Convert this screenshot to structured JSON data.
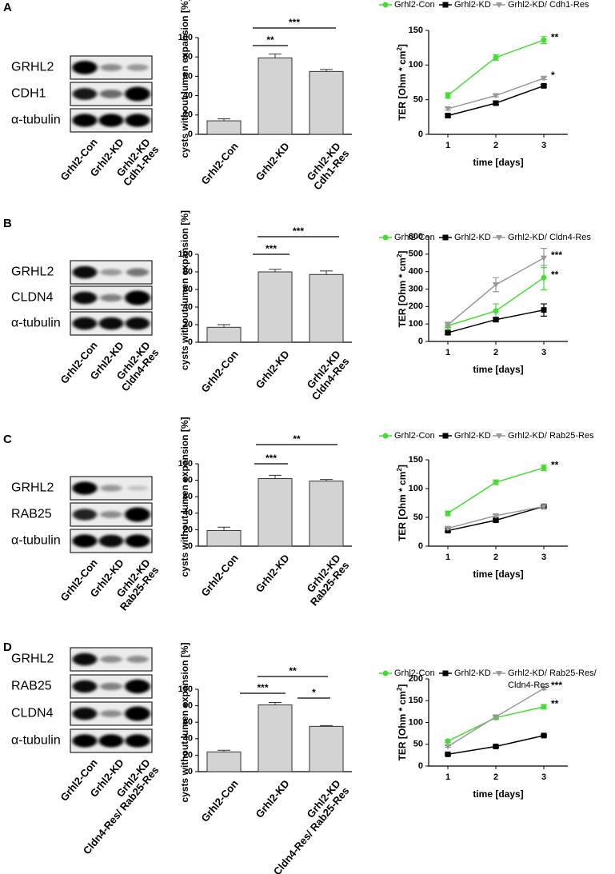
{
  "panels": [
    "A",
    "B",
    "C",
    "D"
  ],
  "blots": [
    {
      "proteins": [
        "GRHL2",
        "CDH1",
        "α-tubulin"
      ],
      "lanes": [
        "Grhl2-Con",
        "Grhl2-KD",
        "Grhl2-KD\nCdh1-Res"
      ]
    },
    {
      "proteins": [
        "GRHL2",
        "CLDN4",
        "α-tubulin"
      ],
      "lanes": [
        "Grhl2-Con",
        "Grhl2-KD",
        "Grhl2-KD\nCldn4-Res"
      ]
    },
    {
      "proteins": [
        "GRHL2",
        "RAB25",
        "α-tubulin"
      ],
      "lanes": [
        "Grhl2-Con",
        "Grhl2-KD",
        "Grhl2-KD\nRab25-Res"
      ]
    },
    {
      "proteins": [
        "GRHL2",
        "RAB25",
        "CLDN4",
        "α-tubulin"
      ],
      "lanes": [
        "Grhl2-Con",
        "Grhl2-KD",
        "Grhl2-KD\nCldn4-Res/ Rab25-Res"
      ]
    }
  ],
  "chart_data": [
    {
      "type": "bar",
      "ylabel": "cysts without lumen expansion [%]",
      "categories": [
        "Grhl2-Con",
        "Grhl2-KD",
        "Grhl2-KD\nCdh1-Res"
      ],
      "values": [
        14,
        79,
        65
      ],
      "errors": [
        2,
        4,
        2
      ],
      "color": "#d3d3d3",
      "ylim": [
        0,
        100
      ],
      "yticks": [
        0,
        20,
        40,
        60,
        80,
        100
      ],
      "significance": [
        "**",
        "***"
      ]
    },
    {
      "type": "line",
      "ylabel": [
        "TER [Ohm * cm",
        "2",
        "]"
      ],
      "xlabel": "time [days]",
      "x": [
        1,
        2,
        3
      ],
      "xlim": [
        0.6,
        3.5
      ],
      "xticks": [
        1,
        2,
        3
      ],
      "ylim": [
        0,
        150
      ],
      "yticks": [
        0,
        50,
        100,
        150
      ],
      "series": [
        {
          "name": "Grhl2-Con",
          "color": "#44dd33",
          "marker": "circle",
          "values": [
            56,
            111,
            136
          ],
          "errors": [
            4,
            4,
            5
          ],
          "annotation": "**"
        },
        {
          "name": "Grhl2-KD",
          "color": "#000000",
          "marker": "square",
          "values": [
            27,
            45,
            70
          ],
          "errors": [
            2,
            2,
            2
          ]
        },
        {
          "name": "Grhl2-KD/ Cdh1-Res",
          "color": "#999999",
          "marker": "triangle",
          "values": [
            37,
            56,
            81
          ],
          "errors": [
            2,
            2,
            2
          ],
          "annotation": "*"
        }
      ]
    },
    {
      "type": "bar",
      "ylabel": "cysts without lumen expansion [%]",
      "categories": [
        "Grhl2-Con",
        "Grhl2-KD",
        "Grhl2-KD\nCldn4-Res"
      ],
      "values": [
        17,
        80,
        77
      ],
      "errors": [
        3,
        3,
        4
      ],
      "color": "#d3d3d3",
      "ylim": [
        0,
        100
      ],
      "yticks": [
        0,
        20,
        40,
        60,
        80,
        100
      ],
      "significance": [
        "***",
        "***"
      ]
    },
    {
      "type": "line",
      "ylabel": [
        "TER [Ohm * cm",
        "2",
        "]"
      ],
      "xlabel": "time [days]",
      "x": [
        1,
        2,
        3
      ],
      "xlim": [
        0.6,
        3.5
      ],
      "xticks": [
        1,
        2,
        3
      ],
      "ylim": [
        0,
        600
      ],
      "yticks": [
        0,
        100,
        200,
        300,
        400,
        500,
        600
      ],
      "series": [
        {
          "name": "Grhl2-Con",
          "color": "#44dd33",
          "marker": "circle",
          "values": [
            90,
            175,
            365
          ],
          "errors": [
            20,
            40,
            70
          ],
          "annotation": "**"
        },
        {
          "name": "Grhl2-KD",
          "color": "#000000",
          "marker": "square",
          "values": [
            50,
            125,
            180
          ],
          "errors": [
            8,
            10,
            35
          ]
        },
        {
          "name": "Grhl2-KD/ Cldn4-Res",
          "color": "#999999",
          "marker": "triangle",
          "values": [
            95,
            325,
            478
          ],
          "errors": [
            15,
            40,
            55
          ],
          "annotation": "***"
        }
      ]
    },
    {
      "type": "bar",
      "ylabel": "cysts without lumen expansion [%]",
      "categories": [
        "Grhl2-Con",
        "Grhl2-KD",
        "Grhl2-KD\nRab25-Res"
      ],
      "values": [
        19,
        82,
        79
      ],
      "errors": [
        4,
        4,
        2
      ],
      "color": "#d3d3d3",
      "ylim": [
        0,
        100
      ],
      "yticks": [
        0,
        20,
        40,
        60,
        80,
        100
      ],
      "significance": [
        "***",
        "**"
      ]
    },
    {
      "type": "line",
      "ylabel": [
        "TER [Ohm * cm",
        "2",
        "]"
      ],
      "xlabel": "time [days]",
      "x": [
        1,
        2,
        3
      ],
      "xlim": [
        0.6,
        3.5
      ],
      "xticks": [
        1,
        2,
        3
      ],
      "ylim": [
        0,
        150
      ],
      "yticks": [
        0,
        50,
        100,
        150
      ],
      "series": [
        {
          "name": "Grhl2-Con",
          "color": "#44dd33",
          "marker": "circle",
          "values": [
            57,
            111,
            136
          ],
          "errors": [
            4,
            4,
            5
          ],
          "annotation": "**"
        },
        {
          "name": "Grhl2-KD",
          "color": "#000000",
          "marker": "square",
          "values": [
            27,
            45,
            69
          ],
          "errors": [
            2,
            2,
            2
          ]
        },
        {
          "name": "Grhl2-KD/ Rab25-Res",
          "color": "#999999",
          "marker": "triangle",
          "values": [
            31,
            53,
            69
          ],
          "errors": [
            2,
            2,
            3
          ]
        }
      ]
    },
    {
      "type": "bar",
      "ylabel": "cysts without lumen expansion [%]",
      "categories": [
        "Grhl2-Con",
        "Grhl2-KD",
        "Grhl2-KD\nCldn4-Res/ Rab25-Res"
      ],
      "values": [
        24,
        81,
        55
      ],
      "errors": [
        2,
        3,
        1
      ],
      "color": "#d3d3d3",
      "ylim": [
        0,
        100
      ],
      "yticks": [
        0,
        20,
        40,
        60,
        80,
        100
      ],
      "significance": [
        "**",
        "***",
        "*"
      ]
    },
    {
      "type": "line",
      "ylabel": [
        "TER [Ohm * cm",
        "2",
        "]"
      ],
      "xlabel": "time [days]",
      "x": [
        1,
        2,
        3
      ],
      "xlim": [
        0.6,
        3.5
      ],
      "xticks": [
        1,
        2,
        3
      ],
      "ylim": [
        0,
        200
      ],
      "yticks": [
        0,
        50,
        100,
        150,
        200
      ],
      "series": [
        {
          "name": "Grhl2-Con",
          "color": "#44dd33",
          "marker": "circle",
          "values": [
            57,
            111,
            136
          ],
          "errors": [
            3,
            4,
            5
          ],
          "annotation": "**"
        },
        {
          "name": "Grhl2-KD",
          "color": "#000000",
          "marker": "square",
          "values": [
            27,
            45,
            70
          ],
          "errors": [
            2,
            2,
            2
          ]
        },
        {
          "name": "Grhl2-KD/ Rab25-Res/\nCldn4-Res",
          "color": "#999999",
          "marker": "triangle",
          "values": [
            45,
            113,
            178
          ],
          "errors": [
            2,
            4,
            3
          ],
          "annotation": "***"
        }
      ]
    }
  ]
}
